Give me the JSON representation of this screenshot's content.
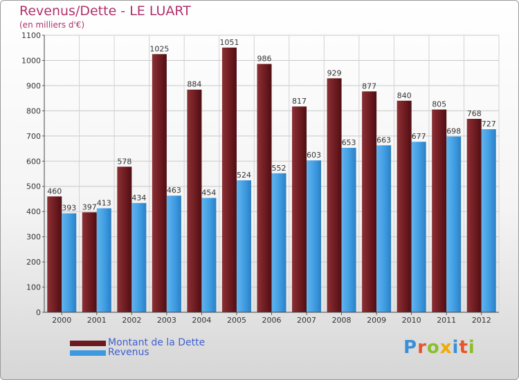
{
  "title": "Revenus/Dette - LE LUART",
  "subtitle": "(en milliers d'€)",
  "colors": {
    "debt": "#6b1a1f",
    "revenue": "#3d9ae0",
    "title": "#b0306b",
    "legend_text": "#3f5fd0"
  },
  "legend": [
    {
      "label": "Montant de la Dette",
      "color": "#6b1a1f"
    },
    {
      "label": "Revenus",
      "color": "#3d9ae0"
    }
  ],
  "logo": {
    "text": "Proxiti",
    "letters": [
      "P",
      "r",
      "o",
      "x",
      "i",
      "t",
      "i"
    ]
  },
  "chart_data": {
    "type": "bar",
    "title": "Revenus/Dette - LE LUART",
    "subtitle": "(en milliers d'€)",
    "categories": [
      "2000",
      "2001",
      "2002",
      "2003",
      "2004",
      "2005",
      "2006",
      "2007",
      "2008",
      "2009",
      "2010",
      "2011",
      "2012"
    ],
    "series": [
      {
        "name": "Montant de la Dette",
        "values": [
          460,
          397,
          578,
          1025,
          884,
          1051,
          986,
          817,
          929,
          877,
          840,
          805,
          768
        ]
      },
      {
        "name": "Revenus",
        "values": [
          393,
          413,
          434,
          463,
          454,
          524,
          552,
          603,
          653,
          663,
          677,
          698,
          727
        ]
      }
    ],
    "ylim": [
      0,
      1100
    ],
    "yticks": [
      0,
      100,
      200,
      300,
      400,
      500,
      600,
      700,
      800,
      900,
      1000,
      1100
    ],
    "grid": true,
    "legend_position": "bottom-left"
  }
}
